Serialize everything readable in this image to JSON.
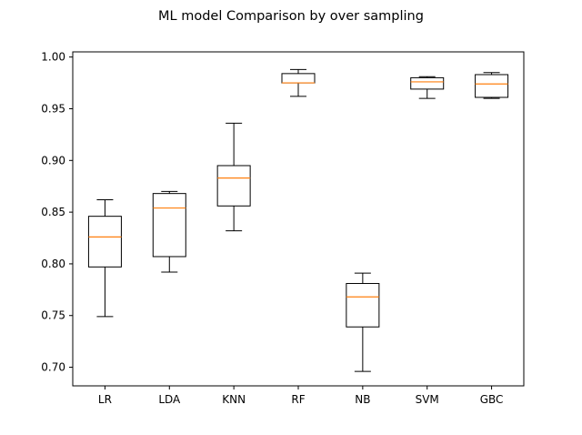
{
  "chart_data": {
    "type": "boxplot",
    "title": "ML model Comparison by over sampling",
    "xlabel": "",
    "ylabel": "",
    "ylim": [
      0.682,
      1.005
    ],
    "yticks": [
      0.7,
      0.75,
      0.8,
      0.85,
      0.9,
      0.95,
      1.0
    ],
    "ytick_labels": [
      "0.70",
      "0.75",
      "0.80",
      "0.85",
      "0.90",
      "0.95",
      "1.00"
    ],
    "grid": false,
    "categories": [
      "LR",
      "LDA",
      "KNN",
      "RF",
      "NB",
      "SVM",
      "GBC"
    ],
    "boxes": [
      {
        "category": "LR",
        "whisker_low": 0.749,
        "q1": 0.797,
        "median": 0.826,
        "q3": 0.846,
        "whisker_high": 0.862
      },
      {
        "category": "LDA",
        "whisker_low": 0.792,
        "q1": 0.807,
        "median": 0.854,
        "q3": 0.868,
        "whisker_high": 0.87
      },
      {
        "category": "KNN",
        "whisker_low": 0.832,
        "q1": 0.856,
        "median": 0.883,
        "q3": 0.895,
        "whisker_high": 0.936
      },
      {
        "category": "RF",
        "whisker_low": 0.962,
        "q1": 0.975,
        "median": 0.975,
        "q3": 0.984,
        "whisker_high": 0.988
      },
      {
        "category": "NB",
        "whisker_low": 0.696,
        "q1": 0.739,
        "median": 0.768,
        "q3": 0.781,
        "whisker_high": 0.791
      },
      {
        "category": "SVM",
        "whisker_low": 0.96,
        "q1": 0.969,
        "median": 0.976,
        "q3": 0.98,
        "whisker_high": 0.981
      },
      {
        "category": "GBC",
        "whisker_low": 0.96,
        "q1": 0.961,
        "median": 0.974,
        "q3": 0.983,
        "whisker_high": 0.985
      }
    ],
    "colors": {
      "box": "#000000",
      "median": "#ff7f0e",
      "axes": "#000000",
      "background": "#ffffff"
    }
  }
}
